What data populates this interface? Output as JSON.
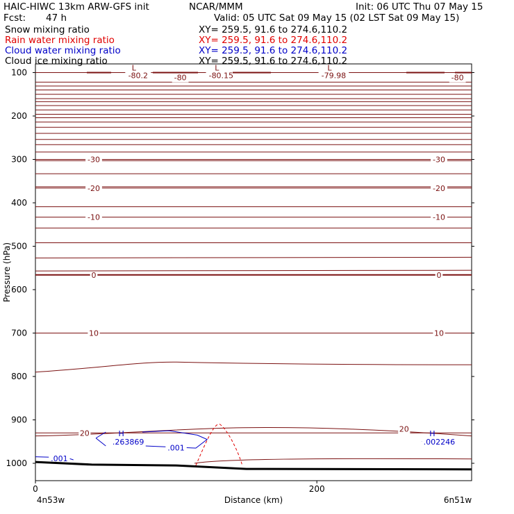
{
  "header": {
    "title_left": "HAIC-HIWC 13km ARW-GFS init",
    "org": "NCAR/MMM",
    "init": "Init: 06 UTC Thu 07 May 15",
    "fcst_label": "Fcst:",
    "fcst_value": "47 h",
    "valid": "Valid: 05 UTC Sat 09 May 15 (02 LST Sat 09 May 15)",
    "fields": [
      {
        "label": "Snow mixing ratio",
        "color": "#000000"
      },
      {
        "label": "Rain water mixing ratio",
        "color": "#e00000"
      },
      {
        "label": "Cloud water mixing ratio",
        "color": "#0000c8"
      },
      {
        "label": "Cloud ice mixing ratio",
        "color": "#000000"
      }
    ],
    "xy": "XY= 259.5, 91.6 to 274.6,110.2"
  },
  "chart_data": {
    "type": "line",
    "xlabel": "Distance (km)",
    "ylabel": "Pressure (hPa)",
    "xlim": [
      0,
      310
    ],
    "ylim": [
      1040,
      80
    ],
    "x_ticks": [
      0,
      200
    ],
    "y_ticks": [
      100,
      200,
      300,
      400,
      500,
      600,
      700,
      800,
      900,
      1000
    ],
    "x_end_labels": {
      "left": "4n53w",
      "right": "6n51w"
    },
    "temperature_contours": [
      {
        "label": "-30",
        "p": 300
      },
      {
        "label": "-20",
        "p": 366
      },
      {
        "label": "-10",
        "p": 433
      },
      {
        "label": "0",
        "p": 566
      },
      {
        "label": "10",
        "p": 700
      },
      {
        "label": "20",
        "p": 930
      }
    ],
    "min_labels": [
      {
        "letter": "L",
        "value": "-80.2",
        "x": 70,
        "p": 95
      },
      {
        "letter": "",
        "value": "-80",
        "x": 100,
        "p": 100
      },
      {
        "letter": "L",
        "value": "-80.15",
        "x": 129,
        "p": 95
      },
      {
        "letter": "L",
        "value": "-79.98",
        "x": 209,
        "p": 95
      },
      {
        "letter": "",
        "value": "-80",
        "x": 297,
        "p": 100
      }
    ],
    "cloud_water_labels": [
      {
        "letter": "H",
        "value": ".263869",
        "x": 65,
        "p": 950
      },
      {
        "letter": "",
        "value": ".001",
        "x": 99,
        "p": 964
      },
      {
        "letter": "",
        "value": ".001",
        "x": 16,
        "p": 989
      },
      {
        "letter": "H",
        "value": ".002246",
        "x": 286,
        "p": 950
      }
    ],
    "terrain_p": 1005
  }
}
